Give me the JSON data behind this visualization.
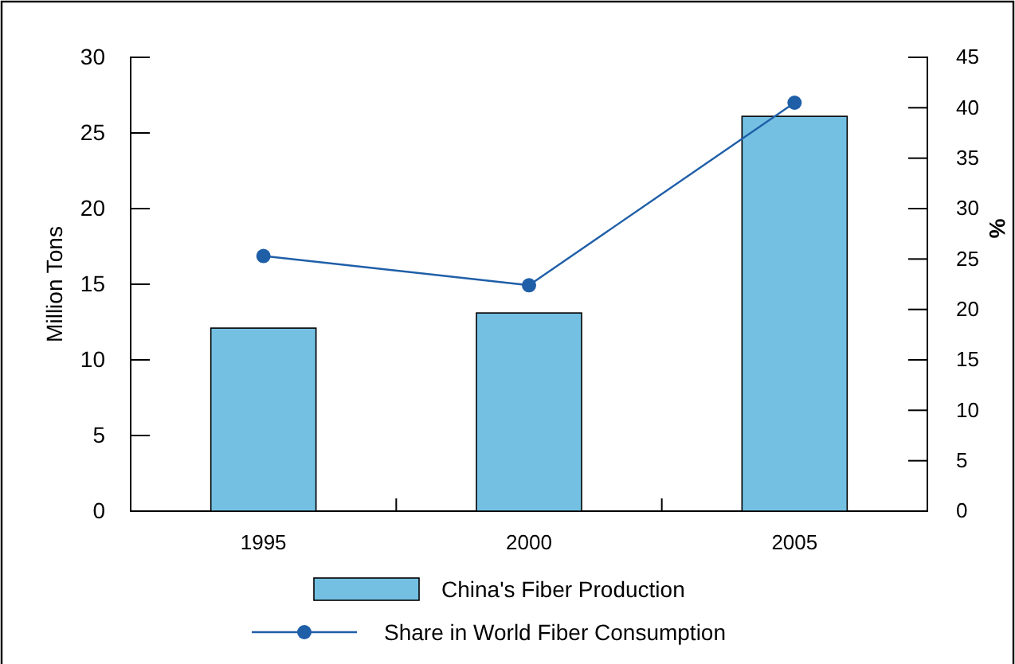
{
  "chart_data": {
    "type": "bar",
    "ylabel": "Million Tons",
    "y2label": "%",
    "categories": [
      "1995",
      "2000",
      "2005"
    ],
    "series": [
      {
        "name": "China's Fiber Production",
        "color": "#74c0e3",
        "values": [
          12.1,
          13.1,
          26.1
        ]
      },
      {
        "name": "Share in World Fiber Consumption",
        "type": "line",
        "axis": "y2",
        "color": "#1f5fa8",
        "marker": "circle",
        "values": [
          25.3,
          22.4,
          40.5
        ]
      }
    ],
    "ylim": [
      0,
      30
    ],
    "yticks": [
      0,
      5,
      10,
      15,
      20,
      25,
      30
    ],
    "y2lim": [
      0,
      45
    ],
    "y2ticks": [
      0,
      5,
      10,
      15,
      20,
      25,
      30,
      35,
      40,
      45
    ],
    "grid": false,
    "legend": "bottom"
  }
}
